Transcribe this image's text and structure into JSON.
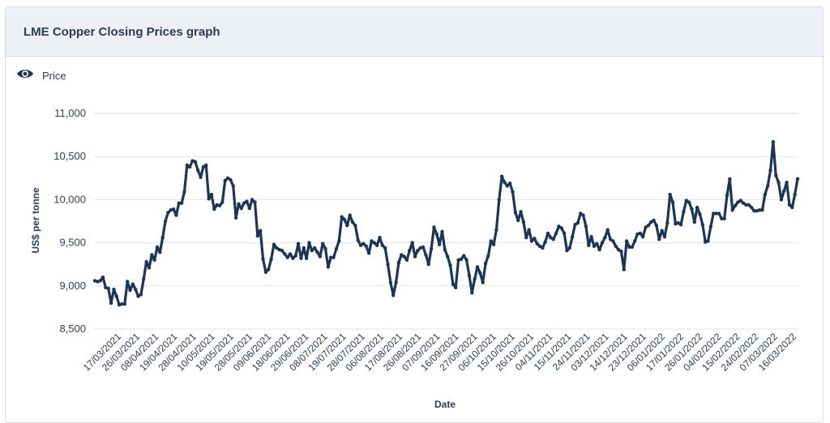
{
  "card": {
    "title": "LME Copper Closing Prices graph"
  },
  "legend": {
    "label": "Price",
    "icon": "eye-icon"
  },
  "colors": {
    "line": "#1c3557",
    "grid": "#dfe3e8",
    "header_bg": "#edf0f4",
    "text": "#2b3c55"
  },
  "chart_data": {
    "type": "line",
    "title": "",
    "xlabel": "Date",
    "ylabel": "US$ per tonne",
    "ylim": [
      8500,
      11000
    ],
    "yticks": [
      "11,000",
      "10,500",
      "10,000",
      "9,500",
      "9,000",
      "8,500"
    ],
    "ytick_values": [
      11000,
      10500,
      10000,
      9500,
      9000,
      8500
    ],
    "xticks": [
      "17/03/2021",
      "26/03/2021",
      "08/04/2021",
      "19/04/2021",
      "28/04/2021",
      "10/05/2021",
      "19/05/2021",
      "28/05/2021",
      "09/06/2021",
      "18/06/2021",
      "29/06/2021",
      "08/07/2021",
      "19/07/2021",
      "28/07/2021",
      "06/08/2021",
      "17/08/2021",
      "26/08/2021",
      "07/09/2021",
      "16/09/2021",
      "27/09/2021",
      "06/10/2021",
      "15/10/2021",
      "26/10/2021",
      "04/11/2021",
      "15/11/2021",
      "24/11/2021",
      "03/12/2021",
      "14/12/2021",
      "23/12/2021",
      "06/01/2022",
      "17/01/2022",
      "26/01/2022",
      "04/02/2022",
      "15/02/2022",
      "24/02/2022",
      "07/03/2022",
      "16/03/2022"
    ],
    "grid": true,
    "legend_position": "top-left",
    "series": [
      {
        "name": "Price",
        "values": [
          9060,
          9050,
          9060,
          9100,
          8980,
          8970,
          8800,
          8960,
          8880,
          8780,
          8790,
          8790,
          9050,
          8950,
          9020,
          8960,
          8880,
          8900,
          9080,
          9280,
          9210,
          9360,
          9300,
          9450,
          9390,
          9560,
          9750,
          9850,
          9880,
          9890,
          9820,
          9960,
          9960,
          10090,
          10400,
          10380,
          10450,
          10440,
          10340,
          10260,
          10380,
          10400,
          10010,
          10060,
          9890,
          9940,
          9930,
          9970,
          10220,
          10250,
          10230,
          10160,
          9790,
          9950,
          9900,
          9960,
          9980,
          9900,
          10000,
          9970,
          9580,
          9640,
          9310,
          9160,
          9190,
          9310,
          9480,
          9440,
          9420,
          9410,
          9370,
          9330,
          9370,
          9320,
          9350,
          9490,
          9320,
          9440,
          9320,
          9500,
          9410,
          9440,
          9390,
          9340,
          9490,
          9430,
          9220,
          9330,
          9330,
          9430,
          9520,
          9800,
          9770,
          9700,
          9820,
          9740,
          9700,
          9530,
          9470,
          9490,
          9460,
          9380,
          9520,
          9500,
          9470,
          9560,
          9470,
          9440,
          9250,
          9040,
          8890,
          9040,
          9270,
          9360,
          9340,
          9300,
          9410,
          9500,
          9340,
          9410,
          9440,
          9450,
          9360,
          9250,
          9430,
          9680,
          9600,
          9480,
          9630,
          9420,
          9340,
          9240,
          9020,
          8980,
          9300,
          9310,
          9350,
          9300,
          9120,
          8920,
          9080,
          9220,
          9150,
          9040,
          9260,
          9350,
          9520,
          9480,
          9650,
          10000,
          10270,
          10200,
          10160,
          10190,
          10090,
          9850,
          9760,
          9860,
          9740,
          9560,
          9650,
          9520,
          9550,
          9490,
          9460,
          9440,
          9510,
          9610,
          9560,
          9540,
          9610,
          9690,
          9670,
          9610,
          9410,
          9440,
          9570,
          9710,
          9730,
          9840,
          9820,
          9690,
          9470,
          9570,
          9460,
          9490,
          9420,
          9500,
          9560,
          9650,
          9540,
          9520,
          9460,
          9420,
          9400,
          9190,
          9520,
          9450,
          9450,
          9520,
          9600,
          9610,
          9570,
          9680,
          9700,
          9740,
          9760,
          9700,
          9540,
          9640,
          9570,
          9730,
          10060,
          9970,
          9720,
          9730,
          9710,
          9860,
          9990,
          9970,
          9890,
          9740,
          9910,
          9830,
          9710,
          9510,
          9520,
          9690,
          9840,
          9840,
          9840,
          9780,
          9780,
          10050,
          10240,
          9880,
          9930,
          9970,
          9990,
          9960,
          9940,
          9940,
          9910,
          9870,
          9870,
          9880,
          9880,
          10060,
          10160,
          10340,
          10670,
          10280,
          10200,
          10000,
          10100,
          10200,
          9940,
          9910,
          10060,
          10240
        ]
      }
    ]
  }
}
